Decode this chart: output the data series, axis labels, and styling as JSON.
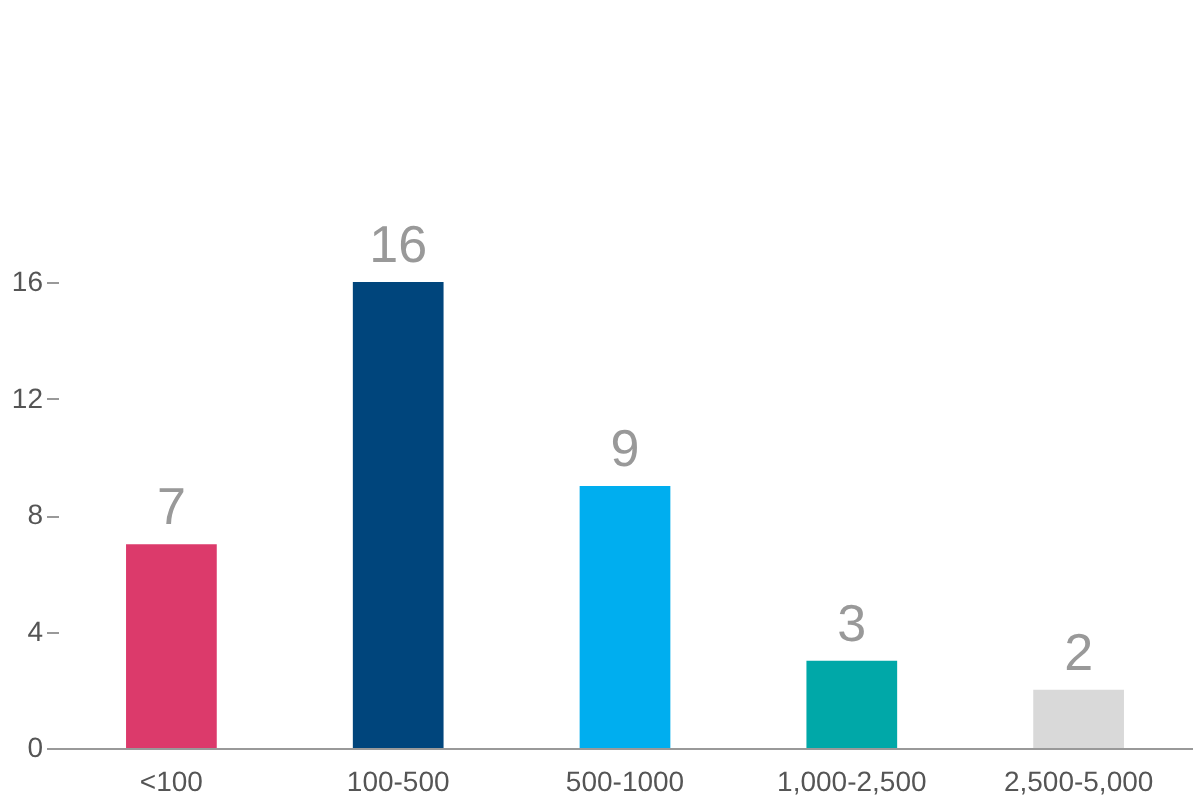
{
  "chart_data": {
    "type": "bar",
    "categories": [
      "<100",
      "100-500",
      "500-1000",
      "1,000-2,500",
      "2,500-5,000"
    ],
    "values": [
      7,
      16,
      9,
      3,
      2
    ],
    "colors": [
      "#dc3a6b",
      "#00457c",
      "#00aeef",
      "#00a8a8",
      "#d9d9d9"
    ],
    "ylim": [
      0,
      16
    ],
    "yticks": [
      0,
      4,
      8,
      12,
      16
    ],
    "grid": false,
    "legend": false,
    "data_labels": true
  }
}
